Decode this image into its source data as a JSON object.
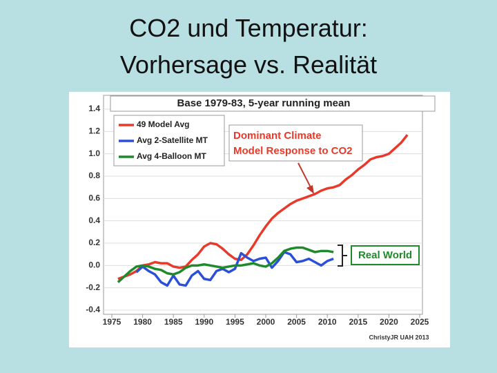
{
  "slide_title": [
    "CO2 und Temperatur:",
    "Vorhersage vs. Realität"
  ],
  "chart_data": {
    "type": "line",
    "title": "Base 1979-83, 5-year running mean",
    "annotation": [
      "Dominant Climate",
      "Model Response to CO2"
    ],
    "bracket_label": "Real World",
    "credit": "ChristyJR UAH 2013",
    "xlim": [
      1975,
      2025
    ],
    "ylim": [
      -0.4,
      1.4
    ],
    "xticks": [
      1975,
      1980,
      1985,
      1990,
      1995,
      2000,
      2005,
      2010,
      2015,
      2020,
      2025
    ],
    "yticks": [
      {
        "value": 1.4,
        "label": "1.4"
      },
      {
        "value": 1.2,
        "label": "1.2"
      },
      {
        "value": 1.0,
        "label": "1.0"
      },
      {
        "value": 0.8,
        "label": "0.8"
      },
      {
        "value": 0.6,
        "label": "0.6"
      },
      {
        "value": 0.4,
        "label": "0.4"
      },
      {
        "value": 0.2,
        "label": "0.2"
      },
      {
        "value": 0.0,
        "label": "0.0"
      },
      {
        "value": -0.2,
        "label": "-0.2"
      },
      {
        "value": -0.4,
        "label": "-0.4"
      }
    ],
    "grid": true,
    "series": [
      {
        "name": "49 Model Avg",
        "color": "#e8392a",
        "x": [
          1976,
          1977,
          1978,
          1979,
          1980,
          1981,
          1982,
          1983,
          1984,
          1985,
          1986,
          1987,
          1988,
          1989,
          1990,
          1991,
          1992,
          1993,
          1994,
          1995,
          1996,
          1997,
          1998,
          1999,
          2000,
          2001,
          2002,
          2003,
          2004,
          2005,
          2006,
          2007,
          2008,
          2009,
          2010,
          2011,
          2012,
          2013,
          2014,
          2015,
          2016,
          2017,
          2018,
          2019,
          2020,
          2021,
          2022,
          2023
        ],
        "values": [
          -0.12,
          -0.1,
          -0.08,
          -0.05,
          0.0,
          0.01,
          0.03,
          0.02,
          0.02,
          -0.01,
          -0.02,
          -0.01,
          0.05,
          0.1,
          0.17,
          0.2,
          0.19,
          0.15,
          0.1,
          0.06,
          0.05,
          0.1,
          0.18,
          0.27,
          0.35,
          0.42,
          0.47,
          0.51,
          0.55,
          0.58,
          0.6,
          0.62,
          0.64,
          0.67,
          0.69,
          0.7,
          0.72,
          0.77,
          0.81,
          0.86,
          0.9,
          0.95,
          0.97,
          0.98,
          1.0,
          1.05,
          1.1,
          1.17
        ]
      },
      {
        "name": "Avg 2-Satellite MT",
        "color": "#2b4fd6",
        "x": [
          1979,
          1980,
          1981,
          1982,
          1983,
          1984,
          1985,
          1986,
          1987,
          1988,
          1989,
          1990,
          1991,
          1992,
          1993,
          1994,
          1995,
          1996,
          1997,
          1998,
          1999,
          2000,
          2001,
          2002,
          2003,
          2004,
          2005,
          2006,
          2007,
          2008,
          2009,
          2010,
          2011
        ],
        "values": [
          -0.06,
          -0.01,
          -0.05,
          -0.08,
          -0.15,
          -0.18,
          -0.09,
          -0.17,
          -0.18,
          -0.09,
          -0.05,
          -0.12,
          -0.13,
          -0.05,
          -0.03,
          -0.06,
          -0.03,
          0.11,
          0.07,
          0.04,
          0.06,
          0.07,
          -0.02,
          0.04,
          0.12,
          0.1,
          0.03,
          0.04,
          0.06,
          0.03,
          0.0,
          0.04,
          0.06
        ]
      },
      {
        "name": "Avg 4-Balloon MT",
        "color": "#1e8a2a",
        "x": [
          1976,
          1977,
          1978,
          1979,
          1980,
          1981,
          1982,
          1983,
          1984,
          1985,
          1986,
          1987,
          1988,
          1989,
          1990,
          1991,
          1992,
          1993,
          1994,
          1995,
          1996,
          1997,
          1998,
          1999,
          2000,
          2001,
          2002,
          2003,
          2004,
          2005,
          2006,
          2007,
          2008,
          2009,
          2010,
          2011
        ],
        "values": [
          -0.15,
          -0.1,
          -0.05,
          -0.01,
          0.0,
          -0.01,
          -0.03,
          -0.04,
          -0.07,
          -0.08,
          -0.06,
          -0.02,
          0.0,
          0.0,
          0.01,
          0.0,
          -0.01,
          -0.02,
          -0.01,
          0.0,
          0.0,
          0.01,
          0.02,
          0.0,
          -0.01,
          0.02,
          0.07,
          0.13,
          0.15,
          0.16,
          0.16,
          0.14,
          0.12,
          0.13,
          0.13,
          0.12
        ]
      }
    ]
  }
}
